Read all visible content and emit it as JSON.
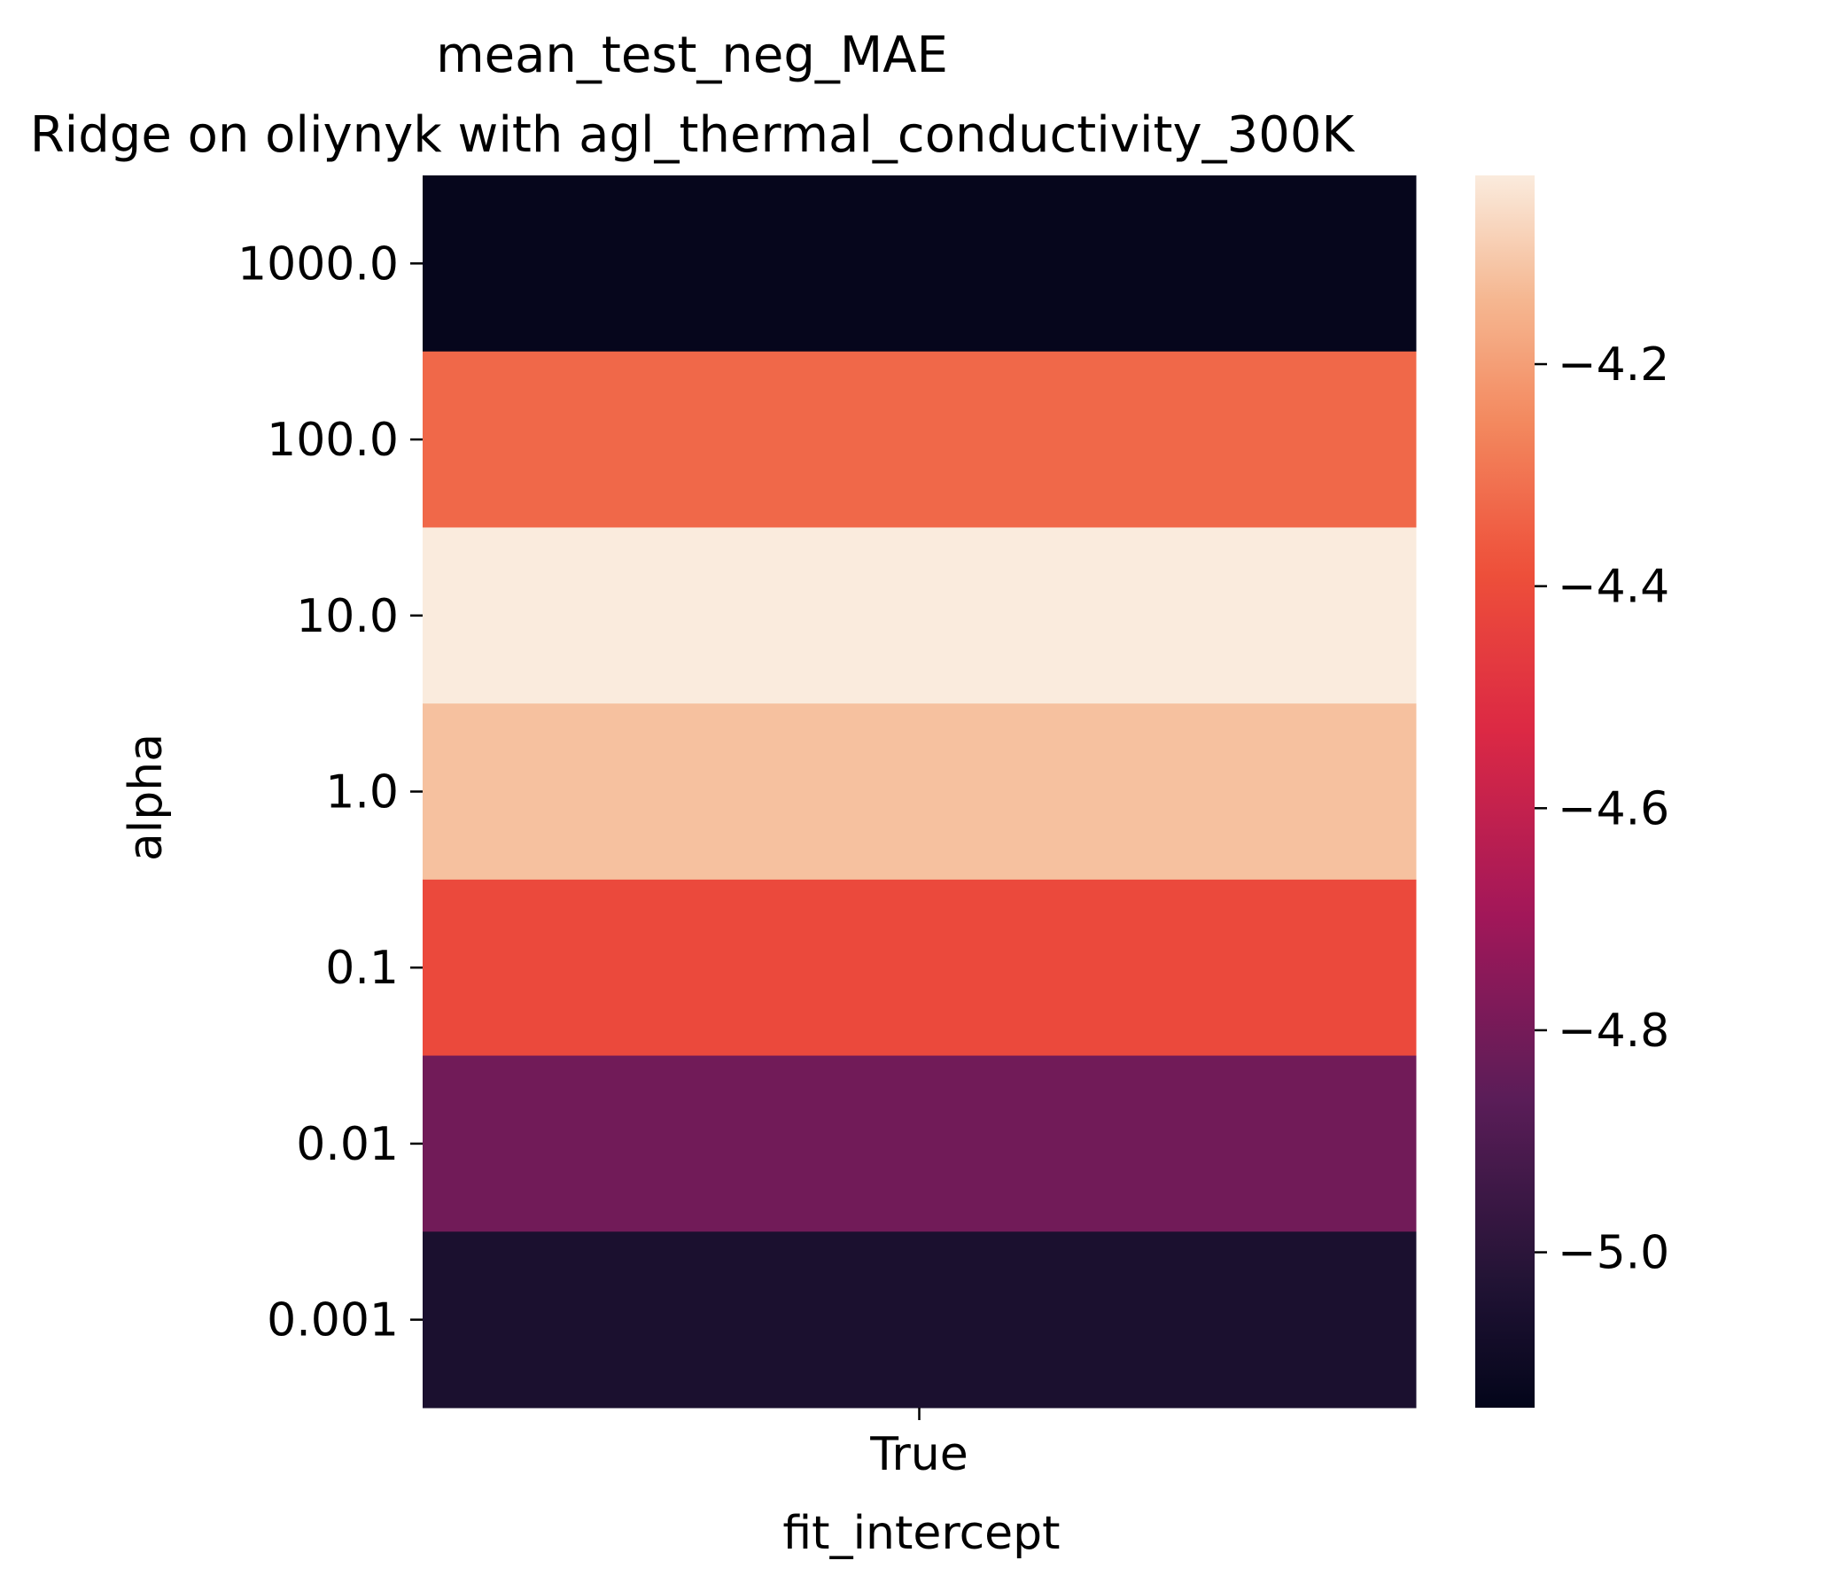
{
  "chart_data": {
    "type": "heatmap",
    "title": "mean_test_neg_MAE",
    "subtitle": "Ridge on oliynyk with agl_thermal_conductivity_300K",
    "xlabel": "fit_intercept",
    "ylabel": "alpha",
    "x_categories": [
      "True"
    ],
    "y_categories": [
      "1000.0",
      "100.0",
      "10.0",
      "1.0",
      "0.1",
      "0.01",
      "0.001"
    ],
    "values": [
      [
        -5.13
      ],
      [
        -4.33
      ],
      [
        -4.03
      ],
      [
        -4.12
      ],
      [
        -4.41
      ],
      [
        -4.81
      ],
      [
        -5.05
      ]
    ],
    "colorbar": {
      "range": [
        -5.14,
        -4.03
      ],
      "ticks": [
        -4.2,
        -4.4,
        -4.6,
        -4.8,
        -5.0
      ],
      "tick_labels": [
        "−4.2",
        "−4.4",
        "−4.6",
        "−4.8",
        "−5.0"
      ],
      "colormap": "rocket"
    }
  }
}
